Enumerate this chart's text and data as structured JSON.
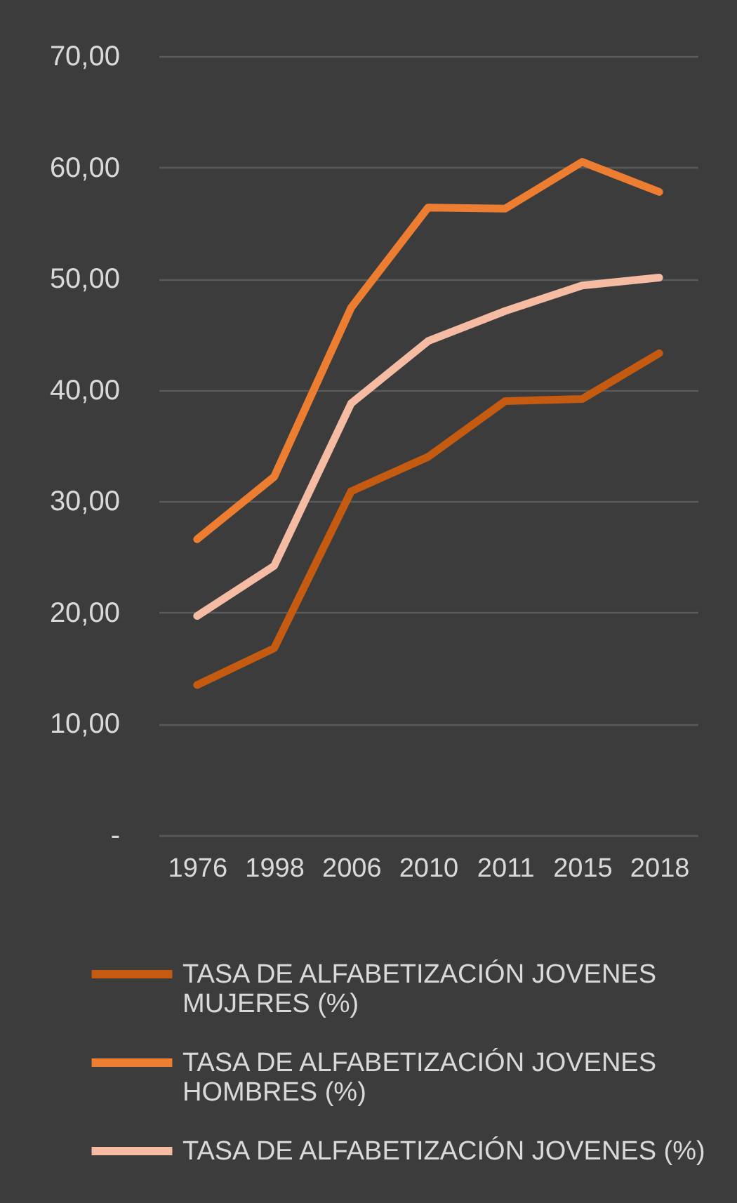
{
  "chart_data": {
    "type": "line",
    "categories": [
      "1976",
      "1998",
      "2006",
      "2010",
      "2011",
      "2015",
      "2018"
    ],
    "series": [
      {
        "name": "TASA DE ALFABETIZACIÓN JOVENES MUJERES (%)",
        "color": "#c55a11",
        "values": [
          13.5,
          16.8,
          30.9,
          34.0,
          39.0,
          39.2,
          43.3
        ]
      },
      {
        "name": "TASA DE ALFABETIZACIÓN JOVENES HOMBRES (%)",
        "color": "#ed7d31",
        "values": [
          26.6,
          32.2,
          47.4,
          56.4,
          56.3,
          60.5,
          57.8
        ]
      },
      {
        "name": "TASA DE ALFABETIZACIÓN JOVENES (%)",
        "color": "#f5bba3",
        "values": [
          19.7,
          24.2,
          38.8,
          44.4,
          47.1,
          49.4,
          50.1
        ]
      }
    ],
    "ylim": [
      0,
      70
    ],
    "yticks": [
      {
        "value": 0,
        "label": "-"
      },
      {
        "value": 10,
        "label": "10,00"
      },
      {
        "value": 20,
        "label": "20,00"
      },
      {
        "value": 30,
        "label": "30,00"
      },
      {
        "value": 40,
        "label": "40,00"
      },
      {
        "value": 50,
        "label": "50,00"
      },
      {
        "value": 60,
        "label": "60,00"
      },
      {
        "value": 70,
        "label": "70,00"
      }
    ],
    "grid": "y",
    "legend": "bottom",
    "line_style": "solid"
  }
}
